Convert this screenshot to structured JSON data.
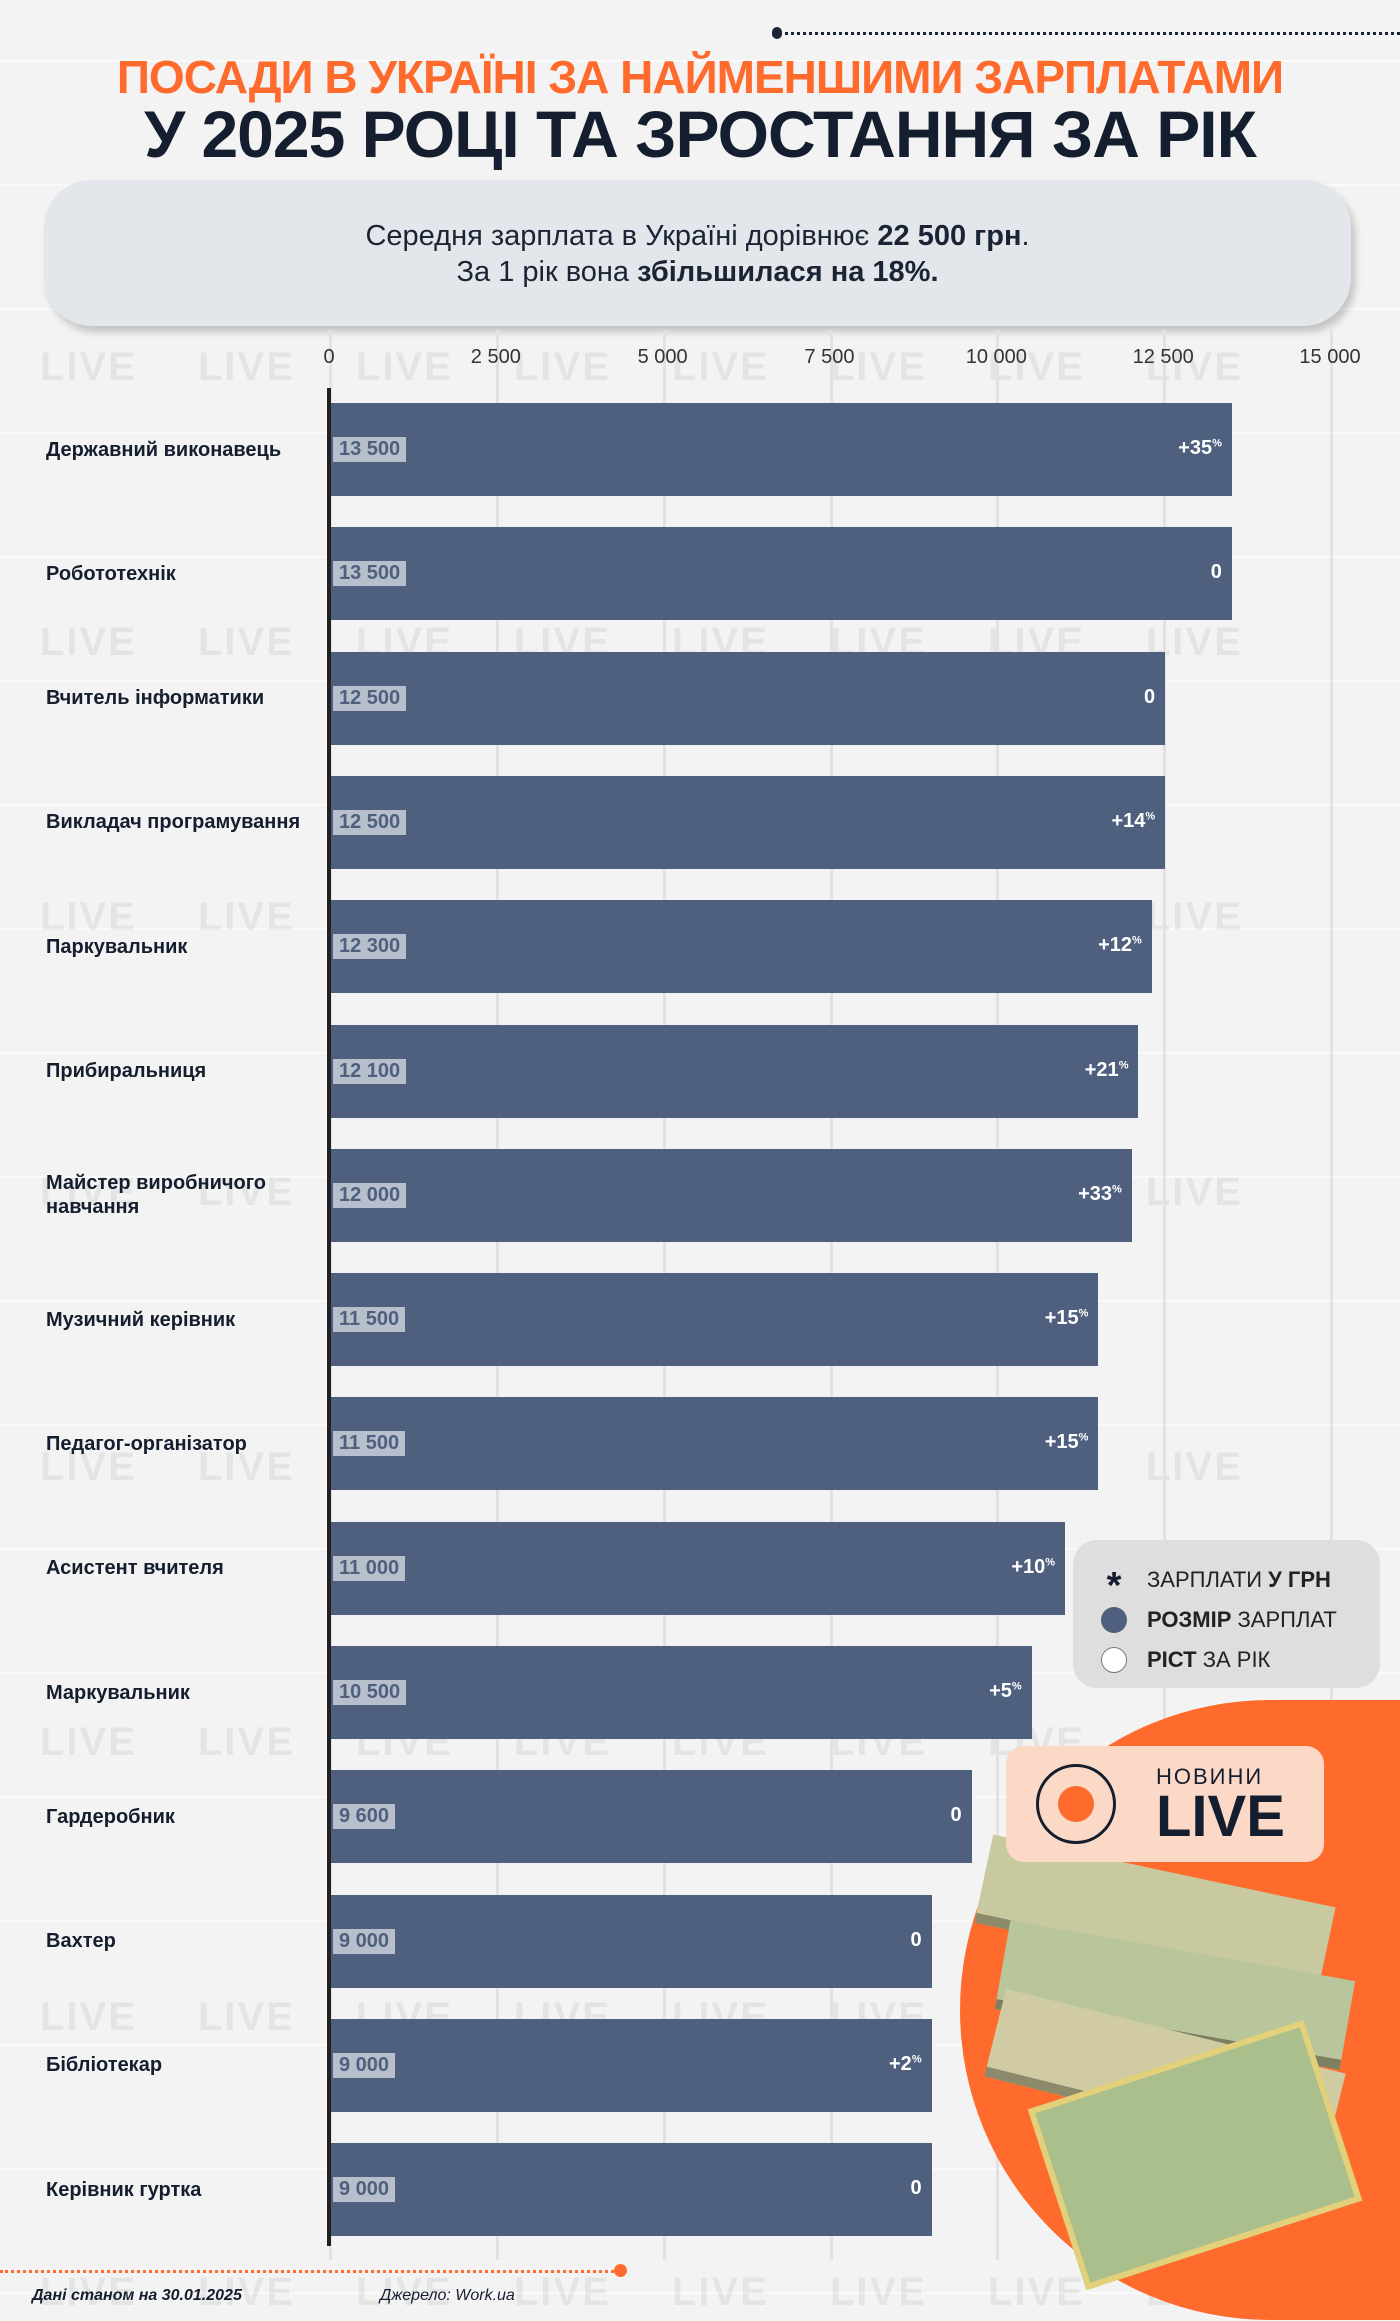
{
  "header": {
    "title_line1": "ПОСАДИ В УКРАЇНІ ЗА НАЙМЕНШИМИ ЗАРПЛАТАМИ",
    "title_line2": "У 2025 РОЦІ ТА ЗРОСТАННЯ ЗА РІК"
  },
  "summary": {
    "line1_prefix": "Середня зарплата в Україні дорівнює ",
    "line1_bold": "22 500 грн",
    "line1_suffix": ".",
    "line2_prefix": "За 1 рік вона ",
    "line2_bold": "збільшилася на 18%."
  },
  "legend": {
    "currency_regular": "ЗАРПЛАТИ ",
    "currency_bold": "У ГРН",
    "size_bold": "РОЗМІР",
    "size_regular": " ЗАРПЛАТ",
    "growth_bold": "РІСТ",
    "growth_regular": " ЗА РІК"
  },
  "logo": {
    "top": "НОВИНИ",
    "bottom": "LIVE"
  },
  "watermark": "LIVE",
  "footer": {
    "date": "Дані станом на 30.01.2025",
    "source": "Джерело: Work.ua"
  },
  "colors": {
    "bar": "#4f607e",
    "accent": "#ff6b2c",
    "dark": "#151e2e"
  },
  "chart_data": {
    "type": "bar",
    "orientation": "horizontal",
    "title": "ПОСАДИ В УКРАЇНІ ЗА НАЙМЕНШИМИ ЗАРПЛАТАМИ У 2025 РОЦІ ТА ЗРОСТАННЯ ЗА РІК",
    "xlabel": "",
    "ylabel": "",
    "xlim": [
      0,
      15000
    ],
    "ticks": [
      "0",
      "2 500",
      "5 000",
      "7 500",
      "10 000",
      "12 500",
      "15 000"
    ],
    "tick_values": [
      0,
      2500,
      5000,
      7500,
      10000,
      12500,
      15000
    ],
    "categories": [
      "Державний виконавець",
      "Робототехнік",
      "Вчитель інформатики",
      "Викладач програмування",
      "Паркувальник",
      "Прибиральниця",
      "Майстер виробничого навчання",
      "Музичний керівник",
      "Педагог-організатор",
      "Асистент вчителя",
      "Маркувальник",
      "Гардеробник",
      "Вахтер",
      "Бібліотекар",
      "Керівник гуртка"
    ],
    "values": [
      13500,
      13500,
      12500,
      12500,
      12300,
      12100,
      12000,
      11500,
      11500,
      11000,
      10500,
      9600,
      9000,
      9000,
      9000
    ],
    "value_labels": [
      "13 500",
      "13 500",
      "12 500",
      "12 500",
      "12 300",
      "12 100",
      "12 000",
      "11 500",
      "11 500",
      "11 000",
      "10 500",
      "9 600",
      "9 000",
      "9 000",
      "9 000"
    ],
    "growth_labels": [
      "+35",
      "0",
      "0",
      "+14",
      "+12",
      "+21",
      "+33",
      "+15",
      "+15",
      "+10",
      "+5",
      "0",
      "0",
      "+2",
      "0"
    ],
    "growth_percent": [
      35,
      0,
      0,
      14,
      12,
      21,
      33,
      15,
      15,
      10,
      5,
      0,
      0,
      2,
      0
    ],
    "grid": true,
    "legend": "right"
  }
}
